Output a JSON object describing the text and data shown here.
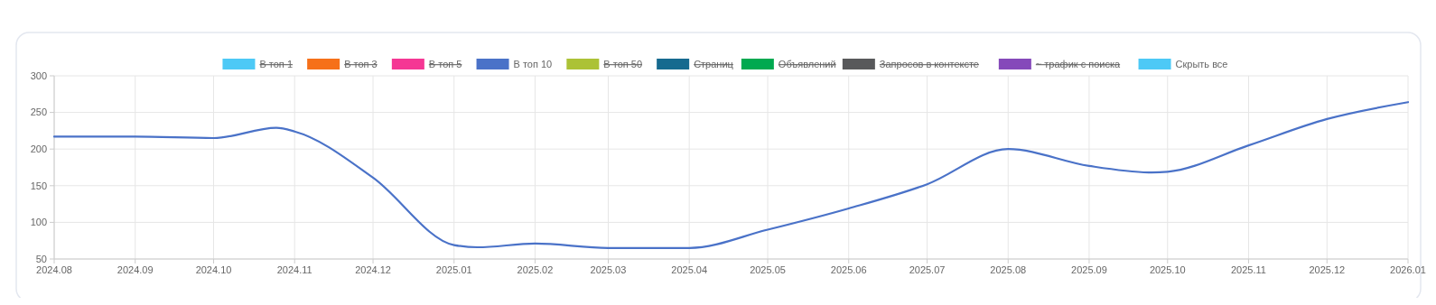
{
  "chart_data": {
    "type": "line",
    "x": [
      "2024-08",
      "2024-09",
      "2024-10",
      "2024-10-25",
      "2024-11",
      "2024-12",
      "2025-01",
      "2025-01-10",
      "2025-02",
      "2025-03",
      "2025-04",
      "2025-05",
      "2025-06",
      "2025-07",
      "2025-08",
      "2025-09",
      "2025-09-25",
      "2025-10",
      "2025-11",
      "2025-12",
      "2026-01"
    ],
    "series": [
      {
        "name": "В топ 1",
        "color": "#4dc9f6",
        "values": [
          null,
          null,
          null,
          null,
          null,
          null,
          null,
          null,
          null,
          null,
          null,
          null,
          null,
          null,
          null,
          null,
          null,
          null,
          null,
          null,
          null
        ]
      },
      {
        "name": "В топ 3",
        "color": "#f67019",
        "values": [
          null,
          null,
          null,
          null,
          null,
          null,
          null,
          null,
          null,
          null,
          null,
          null,
          null,
          null,
          null,
          null,
          null,
          null,
          null,
          null,
          null
        ]
      },
      {
        "name": "В топ 5",
        "color": "#f53794",
        "values": [
          null,
          null,
          null,
          null,
          null,
          null,
          null,
          null,
          null,
          null,
          null,
          null,
          null,
          null,
          null,
          null,
          null,
          null,
          null,
          null,
          null
        ]
      },
      {
        "name": "В топ 10",
        "color": "#4a72c8",
        "values": [
          217,
          217,
          215,
          229,
          224,
          161,
          69,
          66,
          71,
          65,
          65,
          90,
          119,
          152,
          200,
          177,
          168,
          169,
          205,
          241,
          264
        ]
      },
      {
        "name": "В топ 50",
        "color": "#acc236",
        "values": [
          null,
          null,
          null,
          null,
          null,
          null,
          null,
          null,
          null,
          null,
          null,
          null,
          null,
          null,
          null,
          null,
          null,
          null,
          null,
          null,
          null
        ]
      },
      {
        "name": "Страниц",
        "color": "#166a8f",
        "values": [
          null,
          null,
          null,
          null,
          null,
          null,
          null,
          null,
          null,
          null,
          null,
          null,
          null,
          null,
          null,
          null,
          null,
          null,
          null,
          null,
          null
        ]
      },
      {
        "name": "Объявлений",
        "color": "#00a950",
        "values": [
          null,
          null,
          null,
          null,
          null,
          null,
          null,
          null,
          null,
          null,
          null,
          null,
          null,
          null,
          null,
          null,
          null,
          null,
          null,
          null,
          null
        ]
      },
      {
        "name": "Запросов в контексте",
        "color": "#58595b",
        "values": [
          null,
          null,
          null,
          null,
          null,
          null,
          null,
          null,
          null,
          null,
          null,
          null,
          null,
          null,
          null,
          null,
          null,
          null,
          null,
          null,
          null
        ]
      },
      {
        "name": "~ трафик с поиска",
        "color": "#8549ba",
        "values": [
          null,
          null,
          null,
          null,
          null,
          null,
          null,
          null,
          null,
          null,
          null,
          null,
          null,
          null,
          null,
          null,
          null,
          null,
          null,
          null,
          null
        ]
      }
    ],
    "annotations": [
      "Скрыть все"
    ],
    "xlim": [
      "2024-08",
      "2026-01"
    ],
    "xticks": [
      {
        "value": "2024-08",
        "label": "2024.08"
      },
      {
        "value": "2024-09",
        "label": "2024.09"
      },
      {
        "value": "2024-10",
        "label": "2024.10"
      },
      {
        "value": "2024-11",
        "label": "2024.11"
      },
      {
        "value": "2024-12",
        "label": "2024.12"
      },
      {
        "value": "2025-01",
        "label": "2025.01"
      },
      {
        "value": "2025-02",
        "label": "2025.02"
      },
      {
        "value": "2025-03",
        "label": "2025.03"
      },
      {
        "value": "2025-04",
        "label": "2025.04"
      },
      {
        "value": "2025-05",
        "label": "2025.05"
      },
      {
        "value": "2025-06",
        "label": "2025.06"
      },
      {
        "value": "2025-07",
        "label": "2025.07"
      },
      {
        "value": "2025-08",
        "label": "2025.08"
      },
      {
        "value": "2025-09",
        "label": "2025.09"
      },
      {
        "value": "2025-10",
        "label": "2025.10"
      },
      {
        "value": "2025-11",
        "label": "2025.11"
      },
      {
        "value": "2025-12",
        "label": "2025.12"
      },
      {
        "value": "2026-01",
        "label": "2026.01"
      }
    ],
    "ylim": [
      50,
      300
    ],
    "yticks": [
      50,
      100,
      150,
      200,
      250,
      300
    ],
    "grid": true,
    "legend": "top",
    "marker": "none",
    "line_style": "solid"
  }
}
